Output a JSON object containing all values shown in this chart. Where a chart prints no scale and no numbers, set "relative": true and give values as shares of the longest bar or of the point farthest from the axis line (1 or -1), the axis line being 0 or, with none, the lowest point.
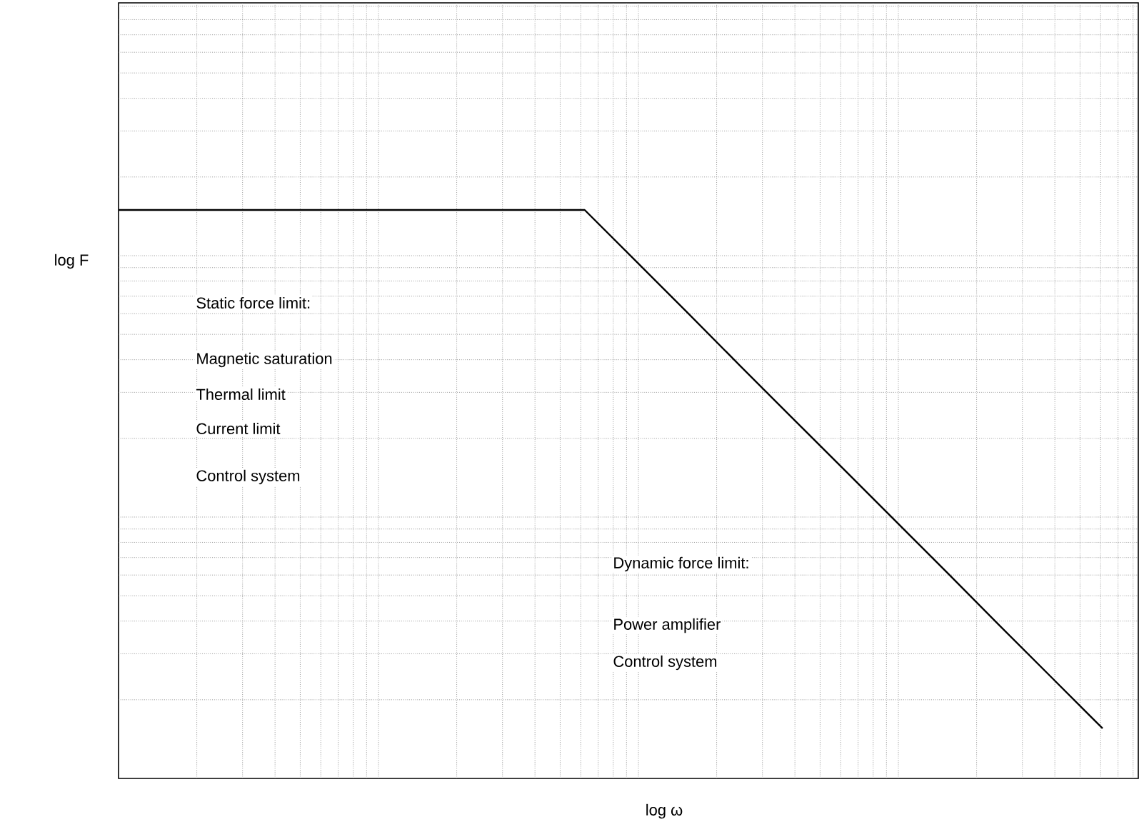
{
  "chart_data": {
    "type": "line",
    "xlabel": "log   ω",
    "ylabel": "log F",
    "relative": true,
    "grid": true,
    "color": "#000000",
    "categories": [
      null,
      null,
      null,
      null,
      null,
      null,
      null,
      null,
      null,
      null,
      null,
      null,
      null,
      null,
      null,
      null,
      null,
      null,
      null,
      null
    ],
    "values": [
      1,
      1,
      1,
      1,
      1,
      1,
      1,
      1,
      1,
      1,
      0.909,
      0.818,
      0.726,
      0.635,
      0.544,
      0.453,
      0.362,
      0.27,
      0.179,
      0.088
    ],
    "annotations": [
      "Static force limit:",
      "Magnetic saturation",
      "Thermal limit",
      "Current limit",
      "Control system",
      "Dynamic force limit:",
      "Power amplifier",
      "Control system"
    ]
  }
}
